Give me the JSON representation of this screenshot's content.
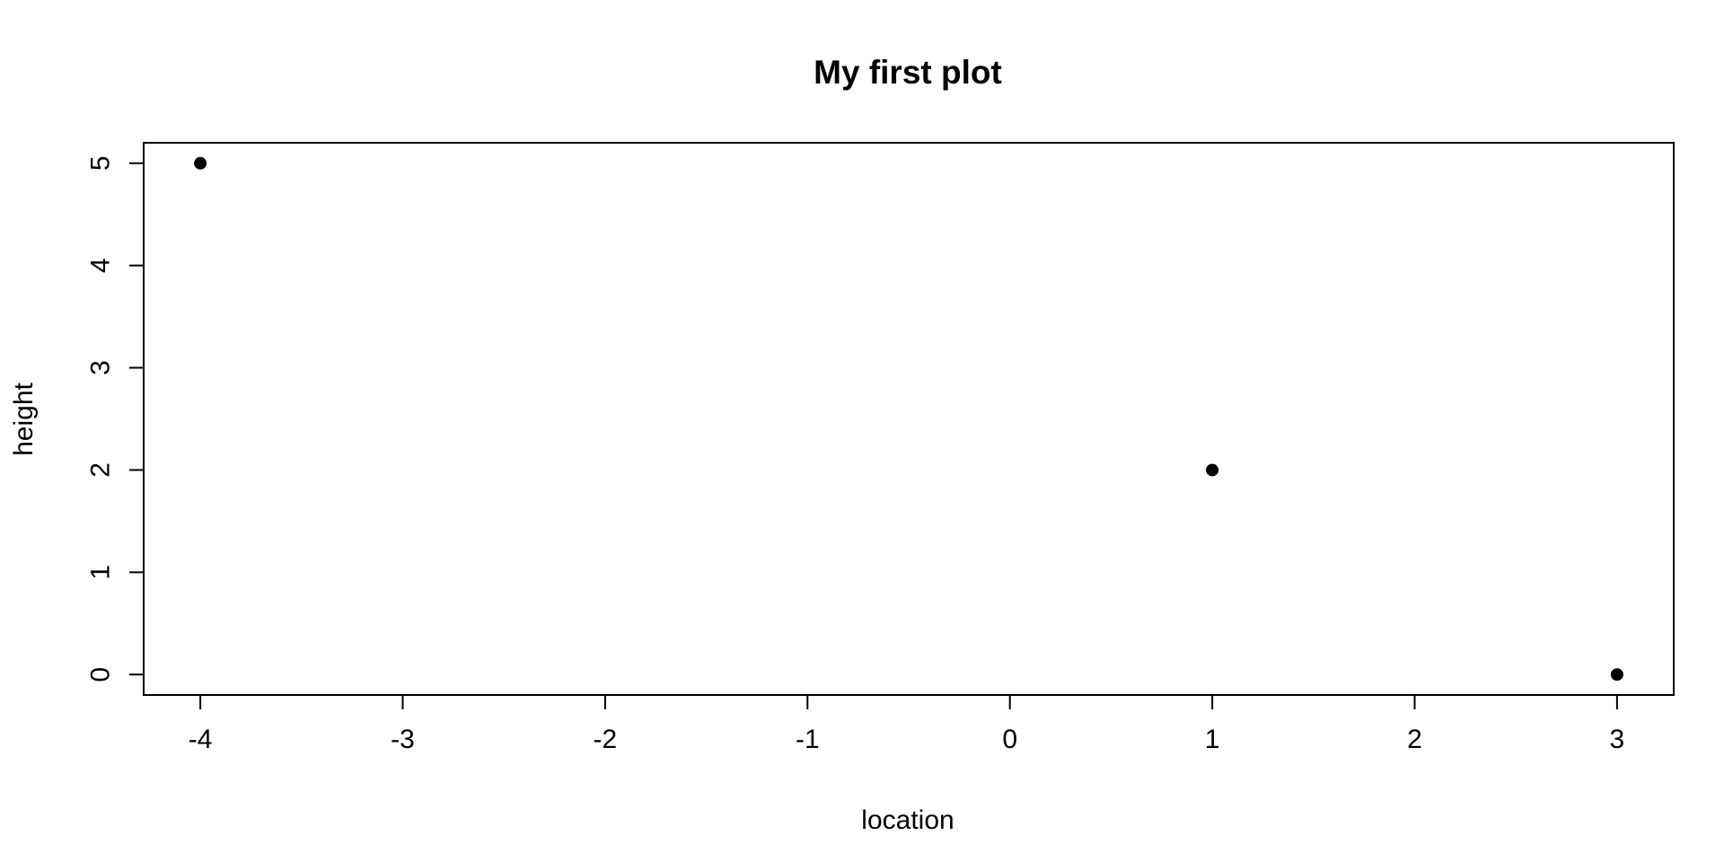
{
  "chart_data": {
    "type": "scatter",
    "title": "My first plot",
    "xlabel": "location",
    "ylabel": "height",
    "x_ticks": [
      -4,
      -3,
      -2,
      -1,
      0,
      1,
      2,
      3
    ],
    "y_ticks": [
      0,
      1,
      2,
      3,
      4,
      5
    ],
    "xlim": [
      -4.28,
      3.28
    ],
    "ylim": [
      -0.2,
      5.2
    ],
    "grid": false,
    "points": [
      {
        "x": -4,
        "y": 5
      },
      {
        "x": 1,
        "y": 2
      },
      {
        "x": 3,
        "y": 0
      }
    ],
    "marker": "filled-circle",
    "color": "#000000"
  }
}
